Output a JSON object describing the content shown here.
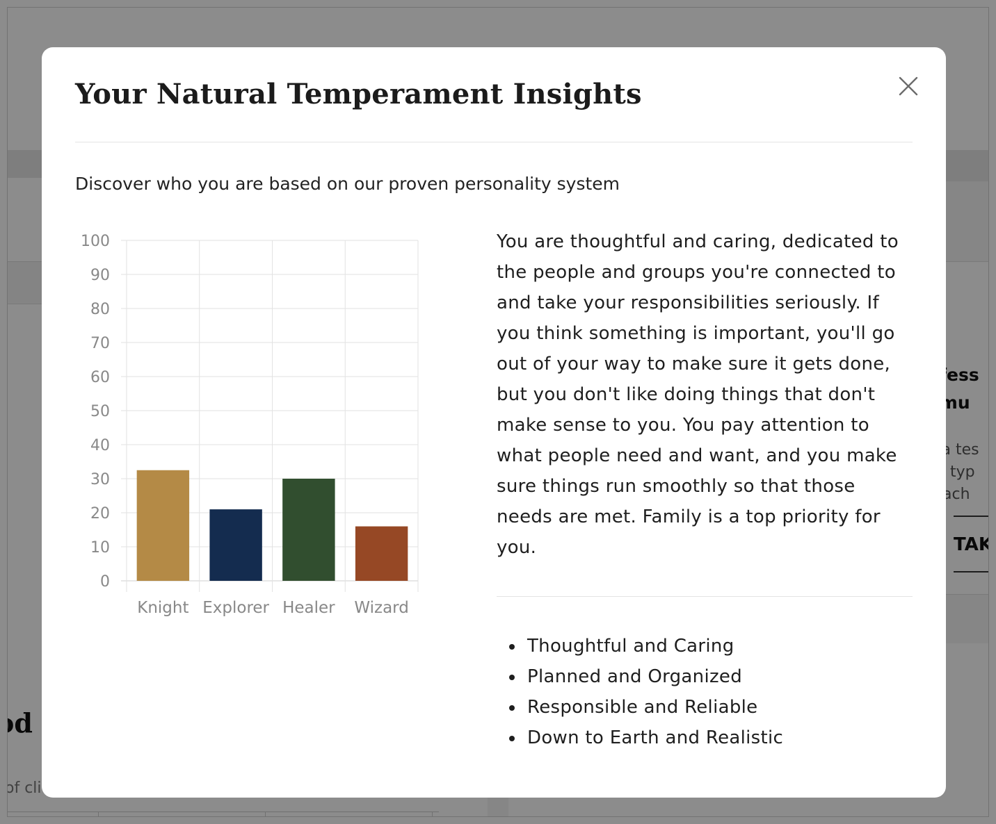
{
  "background": {
    "card_title_line1": "ofess",
    "card_title_line2": "nmu",
    "card_text": [
      "e a tes",
      "ch typ",
      "roach"
    ],
    "card_button": "TAKE",
    "section_heading_fragment": "od",
    "section_text_fragment": "of cli"
  },
  "modal": {
    "title": "Your Natural Temperament Insights",
    "subtitle": "Discover who you are based on our proven personality system",
    "description": "You are thoughtful and caring, dedicated to the people and groups you're connected to and take your responsibilities seriously. If you think something is important, you'll go out of your way to make sure it gets done, but you don't like doing things that don't make sense to you. You pay attention to what people need and want, and you make sure things run smoothly so that those needs are met. Family is a top priority for you.",
    "traits": [
      "Thoughtful and Caring",
      "Planned and Organized",
      "Responsible and Reliable",
      "Down to Earth and Realistic"
    ],
    "close_icon": "close-icon"
  },
  "chart_data": {
    "type": "bar",
    "categories": [
      "Knight",
      "Explorer",
      "Healer",
      "Wizard"
    ],
    "values": [
      32.5,
      21,
      30,
      16
    ],
    "colors": [
      "#b48a46",
      "#142c4f",
      "#314e2f",
      "#964825"
    ],
    "yticks": [
      "0",
      "10",
      "20",
      "30",
      "40",
      "50",
      "60",
      "70",
      "80",
      "90",
      "100"
    ],
    "ylim": [
      0,
      100
    ],
    "grid": true
  }
}
